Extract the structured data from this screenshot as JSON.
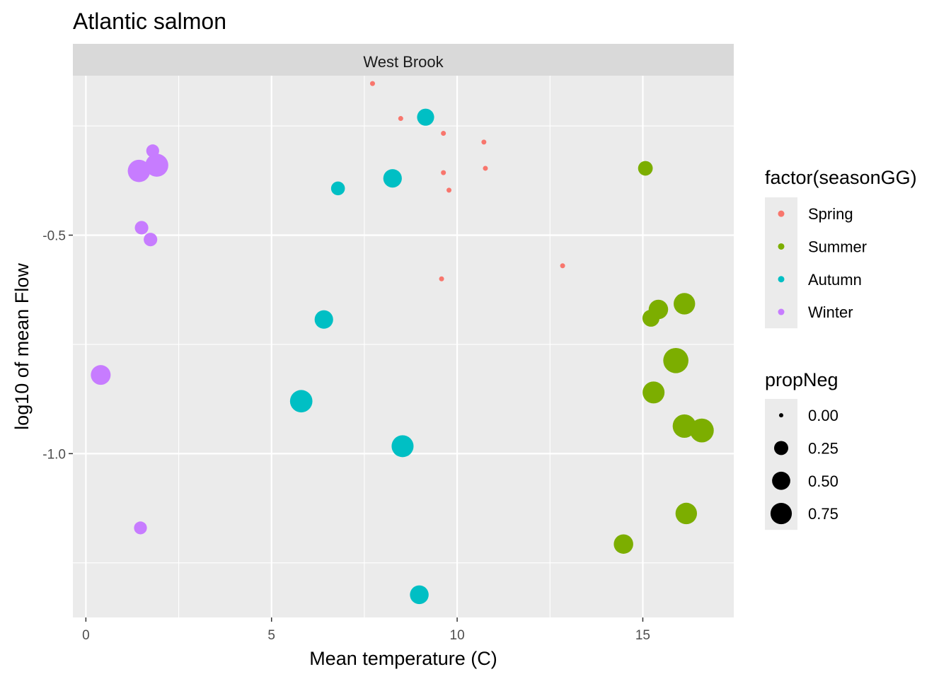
{
  "chart_data": {
    "type": "scatter",
    "title": "Atlantic salmon",
    "facet": "West Brook",
    "xlabel": "Mean temperature (C)",
    "ylabel": "log10 of mean Flow",
    "xlim": [
      -0.35,
      17.45
    ],
    "ylim": [
      -1.375,
      -0.135
    ],
    "x_ticks": [
      0,
      5,
      10,
      15
    ],
    "x_tick_labels": [
      "0",
      "5",
      "10",
      "15"
    ],
    "y_ticks": [
      -0.5,
      -1.0
    ],
    "y_tick_labels": [
      "-0.5",
      "-1.0"
    ],
    "grid": true,
    "legend_position": "right",
    "color_legend": {
      "title": "factor(seasonGG)",
      "entries": [
        {
          "label": "Spring",
          "color": "#F8766D"
        },
        {
          "label": "Summer",
          "color": "#7CAE00"
        },
        {
          "label": "Autumn",
          "color": "#00BFC4"
        },
        {
          "label": "Winter",
          "color": "#C77CFF"
        }
      ]
    },
    "size_legend": {
      "title": "propNeg",
      "entries": [
        {
          "label": "0.00",
          "value": 0.0
        },
        {
          "label": "0.25",
          "value": 0.25
        },
        {
          "label": "0.50",
          "value": 0.5
        },
        {
          "label": "0.75",
          "value": 0.75
        }
      ]
    },
    "series": [
      {
        "name": "Spring",
        "points": [
          {
            "x": 7.72,
            "y": -0.153,
            "size": 0.0
          },
          {
            "x": 8.48,
            "y": -0.233,
            "size": 0.0
          },
          {
            "x": 9.63,
            "y": -0.267,
            "size": 0.0
          },
          {
            "x": 10.72,
            "y": -0.287,
            "size": 0.0
          },
          {
            "x": 9.63,
            "y": -0.357,
            "size": 0.0
          },
          {
            "x": 10.76,
            "y": -0.347,
            "size": 0.0
          },
          {
            "x": 9.78,
            "y": -0.397,
            "size": 0.0
          },
          {
            "x": 12.84,
            "y": -0.57,
            "size": 0.0
          },
          {
            "x": 9.58,
            "y": -0.6,
            "size": 0.0
          }
        ]
      },
      {
        "name": "Summer",
        "points": [
          {
            "x": 15.07,
            "y": -0.347,
            "size": 0.18
          },
          {
            "x": 16.12,
            "y": -0.657,
            "size": 0.52
          },
          {
            "x": 15.42,
            "y": -0.67,
            "size": 0.4
          },
          {
            "x": 15.22,
            "y": -0.69,
            "size": 0.28
          },
          {
            "x": 15.89,
            "y": -0.787,
            "size": 0.78
          },
          {
            "x": 15.29,
            "y": -0.86,
            "size": 0.55
          },
          {
            "x": 16.12,
            "y": -0.937,
            "size": 0.65
          },
          {
            "x": 16.59,
            "y": -0.947,
            "size": 0.68
          },
          {
            "x": 16.17,
            "y": -1.137,
            "size": 0.52
          },
          {
            "x": 14.48,
            "y": -1.207,
            "size": 0.4
          }
        ]
      },
      {
        "name": "Autumn",
        "points": [
          {
            "x": 9.15,
            "y": -0.23,
            "size": 0.28
          },
          {
            "x": 8.26,
            "y": -0.37,
            "size": 0.35
          },
          {
            "x": 6.79,
            "y": -0.393,
            "size": 0.15
          },
          {
            "x": 6.41,
            "y": -0.693,
            "size": 0.35
          },
          {
            "x": 5.8,
            "y": -0.88,
            "size": 0.58
          },
          {
            "x": 8.53,
            "y": -0.983,
            "size": 0.55
          },
          {
            "x": 8.98,
            "y": -1.323,
            "size": 0.36
          }
        ]
      },
      {
        "name": "Winter",
        "points": [
          {
            "x": 1.8,
            "y": -0.307,
            "size": 0.12
          },
          {
            "x": 1.91,
            "y": -0.34,
            "size": 0.62
          },
          {
            "x": 1.43,
            "y": -0.353,
            "size": 0.58
          },
          {
            "x": 1.5,
            "y": -0.483,
            "size": 0.14
          },
          {
            "x": 1.74,
            "y": -0.51,
            "size": 0.14
          },
          {
            "x": 0.4,
            "y": -0.82,
            "size": 0.42
          },
          {
            "x": 1.47,
            "y": -1.17,
            "size": 0.12
          }
        ]
      }
    ]
  }
}
